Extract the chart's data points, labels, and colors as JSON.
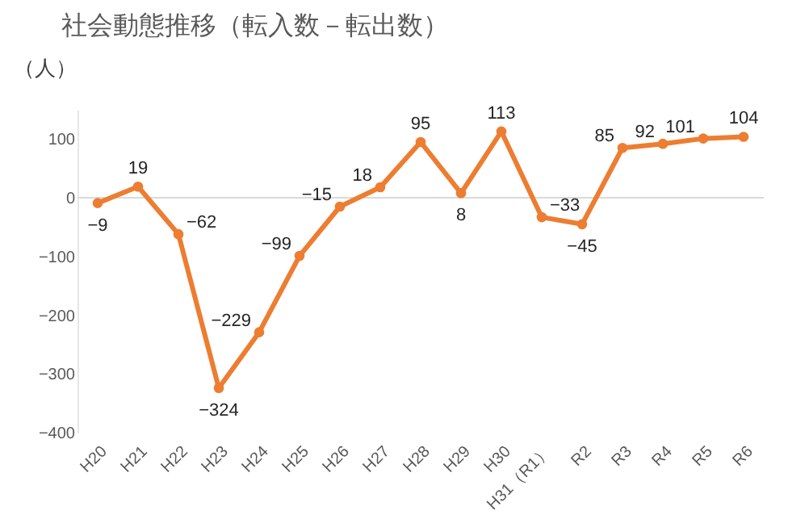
{
  "chart_data": {
    "type": "line",
    "title": "社会動態推移（転入数－転出数）",
    "ylabel": "（人）",
    "categories": [
      "H20",
      "H21",
      "H22",
      "H23",
      "H24",
      "H25",
      "H26",
      "H27",
      "H28",
      "H29",
      "H30",
      "H31（R1）",
      "R2",
      "R3",
      "R4",
      "R5",
      "R6"
    ],
    "series": [
      {
        "color": "#ed7d31",
        "values": [
          -9,
          19,
          -62,
          -324,
          -229,
          -99,
          -15,
          18,
          95,
          8,
          113,
          -33,
          -45,
          85,
          92,
          101,
          104
        ]
      }
    ],
    "ylim": [
      -400,
      150
    ],
    "yticks": [
      -400,
      -300,
      -200,
      -100,
      0,
      100
    ],
    "ref_lines": [
      {
        "axis": "y",
        "value": 0,
        "color": "#d9d9d9"
      }
    ],
    "marker": "circle",
    "data_labels": true,
    "grid": false
  }
}
